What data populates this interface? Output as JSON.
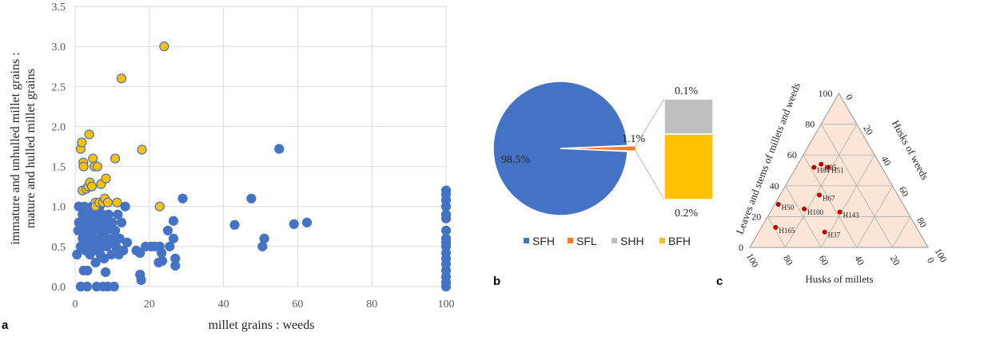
{
  "panels": {
    "a": "a",
    "b": "b",
    "c": "c"
  },
  "chart_data": [
    {
      "type": "scatter",
      "xlabel": "millet grains : weeds",
      "ylabel_line1": "immature and unhulled millet grains :",
      "ylabel_line2": "mature and hulled millet grains",
      "xlim": [
        0,
        100
      ],
      "ylim": [
        0,
        3.5
      ],
      "x_ticks": [
        "0",
        "20",
        "40",
        "60",
        "80",
        "100"
      ],
      "y_ticks": [
        "0.0",
        "0.5",
        "1.0",
        "1.5",
        "2.0",
        "2.5",
        "3.0",
        "3.5"
      ],
      "grid": true,
      "colors": {
        "blue": "#4472C4",
        "yellow": "#FFC000",
        "edge": "#4472C4"
      },
      "series": [
        {
          "color": "blue",
          "points": [
            [
              0.5,
              0.4
            ],
            [
              0.8,
              0.7
            ],
            [
              1,
              0.8
            ],
            [
              1,
              1.0
            ],
            [
              1.5,
              0.5
            ],
            [
              1.5,
              0.0
            ],
            [
              1.8,
              0.7
            ],
            [
              2,
              0.9
            ],
            [
              2,
              0.6
            ],
            [
              2.3,
              0.2
            ],
            [
              2.5,
              1.0
            ],
            [
              2.8,
              0.45
            ],
            [
              3,
              0.75
            ],
            [
              3,
              0.8
            ],
            [
              3.2,
              0.0
            ],
            [
              3.3,
              0.2
            ],
            [
              3.5,
              0.55
            ],
            [
              3.6,
              0.65
            ],
            [
              3.8,
              0.9
            ],
            [
              4,
              0.7
            ],
            [
              4,
              0.4
            ],
            [
              4.2,
              0.85
            ],
            [
              4.5,
              1.0
            ],
            [
              4.6,
              0.6
            ],
            [
              4.8,
              0.5
            ],
            [
              5,
              0.7
            ],
            [
              5,
              0.95
            ],
            [
              5.2,
              0.8
            ],
            [
              5.5,
              0.3
            ],
            [
              5.5,
              0.55
            ],
            [
              5.8,
              0.0
            ],
            [
              6,
              0.75
            ],
            [
              6,
              0.45
            ],
            [
              6.2,
              0.85
            ],
            [
              6.5,
              0.6
            ],
            [
              6.6,
              1.0
            ],
            [
              6.8,
              0.4
            ],
            [
              7,
              0.7
            ],
            [
              7,
              0.5
            ],
            [
              7.3,
              0.9
            ],
            [
              7.5,
              0.0
            ],
            [
              7.5,
              0.75
            ],
            [
              7.8,
              0.35
            ],
            [
              8,
              0.6
            ],
            [
              8,
              0.8
            ],
            [
              8.2,
              0.18
            ],
            [
              8.5,
              0.7
            ],
            [
              8.5,
              0.5
            ],
            [
              8.8,
              0.0
            ],
            [
              9,
              0.9
            ],
            [
              9.2,
              0.55
            ],
            [
              9.5,
              0.75
            ],
            [
              9.8,
              0.4
            ],
            [
              10,
              0.8
            ],
            [
              10,
              0.6
            ],
            [
              10.5,
              0.0
            ],
            [
              10.8,
              0.7
            ],
            [
              11,
              0.5
            ],
            [
              11.5,
              0.9
            ],
            [
              11.8,
              0.4
            ],
            [
              12,
              0.6
            ],
            [
              12.5,
              0.8
            ],
            [
              13,
              0.45
            ],
            [
              13.5,
              1.0
            ],
            [
              14,
              0.55
            ],
            [
              16.5,
              0.45
            ],
            [
              17.5,
              0.42
            ],
            [
              17.5,
              0.15
            ],
            [
              17.8,
              0.08
            ],
            [
              19,
              0.5
            ],
            [
              20.5,
              0.5
            ],
            [
              21.5,
              0.5
            ],
            [
              22.5,
              0.3
            ],
            [
              22.8,
              0.5
            ],
            [
              23.3,
              0.42
            ],
            [
              23.5,
              0.32
            ],
            [
              25,
              0.7
            ],
            [
              25.5,
              0.5
            ],
            [
              26.5,
              0.6
            ],
            [
              26.5,
              0.82
            ],
            [
              27,
              0.35
            ],
            [
              27,
              0.26
            ],
            [
              29,
              1.1
            ],
            [
              43,
              0.77
            ],
            [
              47.5,
              1.1
            ],
            [
              50.5,
              0.5
            ],
            [
              51,
              0.6
            ],
            [
              55,
              1.72
            ],
            [
              59,
              0.78
            ],
            [
              62.5,
              0.8
            ],
            [
              100,
              0.0
            ],
            [
              100,
              0.05
            ],
            [
              100,
              0.12
            ],
            [
              100,
              0.2
            ],
            [
              100,
              0.28
            ],
            [
              100,
              0.35
            ],
            [
              100,
              0.42
            ],
            [
              100,
              0.5
            ],
            [
              100,
              0.55
            ],
            [
              100,
              0.6
            ],
            [
              100,
              0.7
            ],
            [
              100,
              0.85
            ],
            [
              100,
              0.9
            ],
            [
              100,
              1.0
            ],
            [
              100,
              1.08
            ],
            [
              100,
              1.15
            ],
            [
              100,
              1.2
            ]
          ]
        },
        {
          "color": "yellow",
          "points": [
            [
              1.5,
              1.72
            ],
            [
              1.8,
              1.8
            ],
            [
              2,
              1.2
            ],
            [
              2.2,
              1.55
            ],
            [
              2.3,
              1.5
            ],
            [
              3,
              1.22
            ],
            [
              3.5,
              1.25
            ],
            [
              3.8,
              1.9
            ],
            [
              4,
              1.3
            ],
            [
              4.5,
              1.25
            ],
            [
              4.8,
              1.6
            ],
            [
              5.2,
              1.5
            ],
            [
              5.5,
              1.05
            ],
            [
              5.5,
              1.0
            ],
            [
              6,
              1.5
            ],
            [
              6.5,
              1.05
            ],
            [
              7,
              1.28
            ],
            [
              7.5,
              1.05
            ],
            [
              8,
              1.1
            ],
            [
              8.3,
              1.35
            ],
            [
              8.8,
              1.05
            ],
            [
              10.8,
              1.6
            ],
            [
              11.3,
              1.05
            ],
            [
              12.5,
              2.6
            ],
            [
              18,
              1.71
            ],
            [
              22.8,
              1.0
            ],
            [
              24,
              3.0
            ]
          ]
        }
      ]
    },
    {
      "type": "pie",
      "slices": [
        {
          "label": "SFH",
          "value": 98.5,
          "color": "#4472C4",
          "text": "98.5%"
        },
        {
          "label": "SFL",
          "value": 1.1,
          "color": "#ED7D31",
          "text": "1.1%"
        },
        {
          "label": "SHH",
          "value": 0.1,
          "color": "#BFBFBF",
          "text": "0.1%"
        },
        {
          "label": "BFH",
          "value": 0.2,
          "color": "#FFC000",
          "text": "0.2%"
        }
      ],
      "legend": [
        "SFH",
        "SFL",
        "SHH",
        "BFH"
      ],
      "legend_position": "bottom"
    },
    {
      "type": "scatter",
      "subtype": "ternary",
      "axis_left": "Leaves and stems of millets and weeds",
      "axis_right": "Husks of weeds",
      "axis_bottom": "Husks of millets",
      "ticks": [
        "0",
        "20",
        "40",
        "60",
        "80",
        "100"
      ],
      "fill": "#FBE5D6",
      "point_color": "#C00000",
      "points": [
        {
          "label": "H95",
          "bottom": 33,
          "right": 13,
          "left": 54
        },
        {
          "label": "H84",
          "bottom": 38,
          "right": 10,
          "left": 52
        },
        {
          "label": "H50",
          "bottom": 70,
          "right": 2,
          "left": 28
        },
        {
          "label": "H67",
          "bottom": 44,
          "right": 22,
          "left": 34
        },
        {
          "label": "H51",
          "bottom": 30,
          "right": 18,
          "left": 52
        },
        {
          "label": "H100",
          "bottom": 57,
          "right": 18,
          "left": 25
        },
        {
          "label": "H143",
          "bottom": 38,
          "right": 39,
          "left": 23
        },
        {
          "label": "H165",
          "bottom": 79,
          "right": 8,
          "left": 13
        },
        {
          "label": "H37",
          "bottom": 53,
          "right": 37,
          "left": 10
        }
      ]
    }
  ]
}
